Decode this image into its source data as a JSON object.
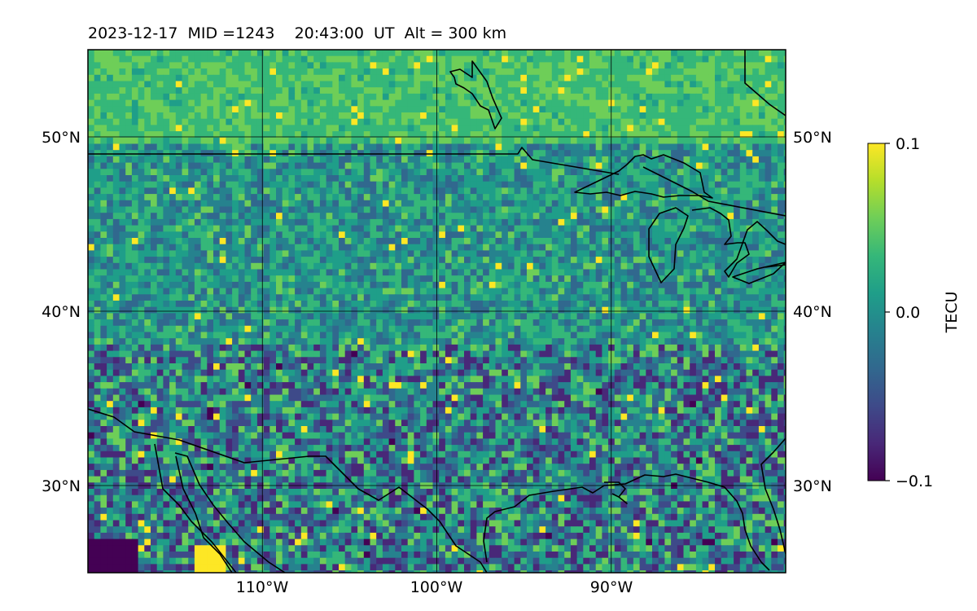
{
  "title": "2023-12-17  MID =1243    20:43:00  UT  Alt = 300 km",
  "chart_data": {
    "type": "heatmap",
    "title": "2023-12-17  MID =1243    20:43:00  UT  Alt = 300 km",
    "map_extent": {
      "lon": [
        -120,
        -80
      ],
      "lat": [
        25,
        55
      ]
    },
    "lon_ticks": [
      -110,
      -100,
      -90
    ],
    "lon_tick_labels": [
      "110°W",
      "100°W",
      "90°W"
    ],
    "lat_ticks": [
      30,
      40,
      50
    ],
    "lat_tick_labels": [
      "30°N",
      "40°N",
      "50°N"
    ],
    "grid": true,
    "colormap": "viridis",
    "colorbar": {
      "label": "TECU",
      "range": [
        -0.1,
        0.1
      ],
      "ticks": [
        "0.1",
        "0.0",
        "−0.1"
      ]
    },
    "field_description": "Mostly near 0.0 TECU (teal/green) north of 45°N; mixed with negative patches (dark purple, about −0.1) south of 38°N; isolated positive pixels (yellow, about 0.1) notably near 113°W 26°N and 94°W 25.5°N."
  },
  "colors": {
    "coastline": "#000000",
    "grid": "#000000",
    "viridis": [
      "#440154",
      "#482878",
      "#3e4a89",
      "#31688e",
      "#26828e",
      "#1f9e89",
      "#35b779",
      "#6ece58",
      "#b5de2b",
      "#fde725"
    ]
  }
}
